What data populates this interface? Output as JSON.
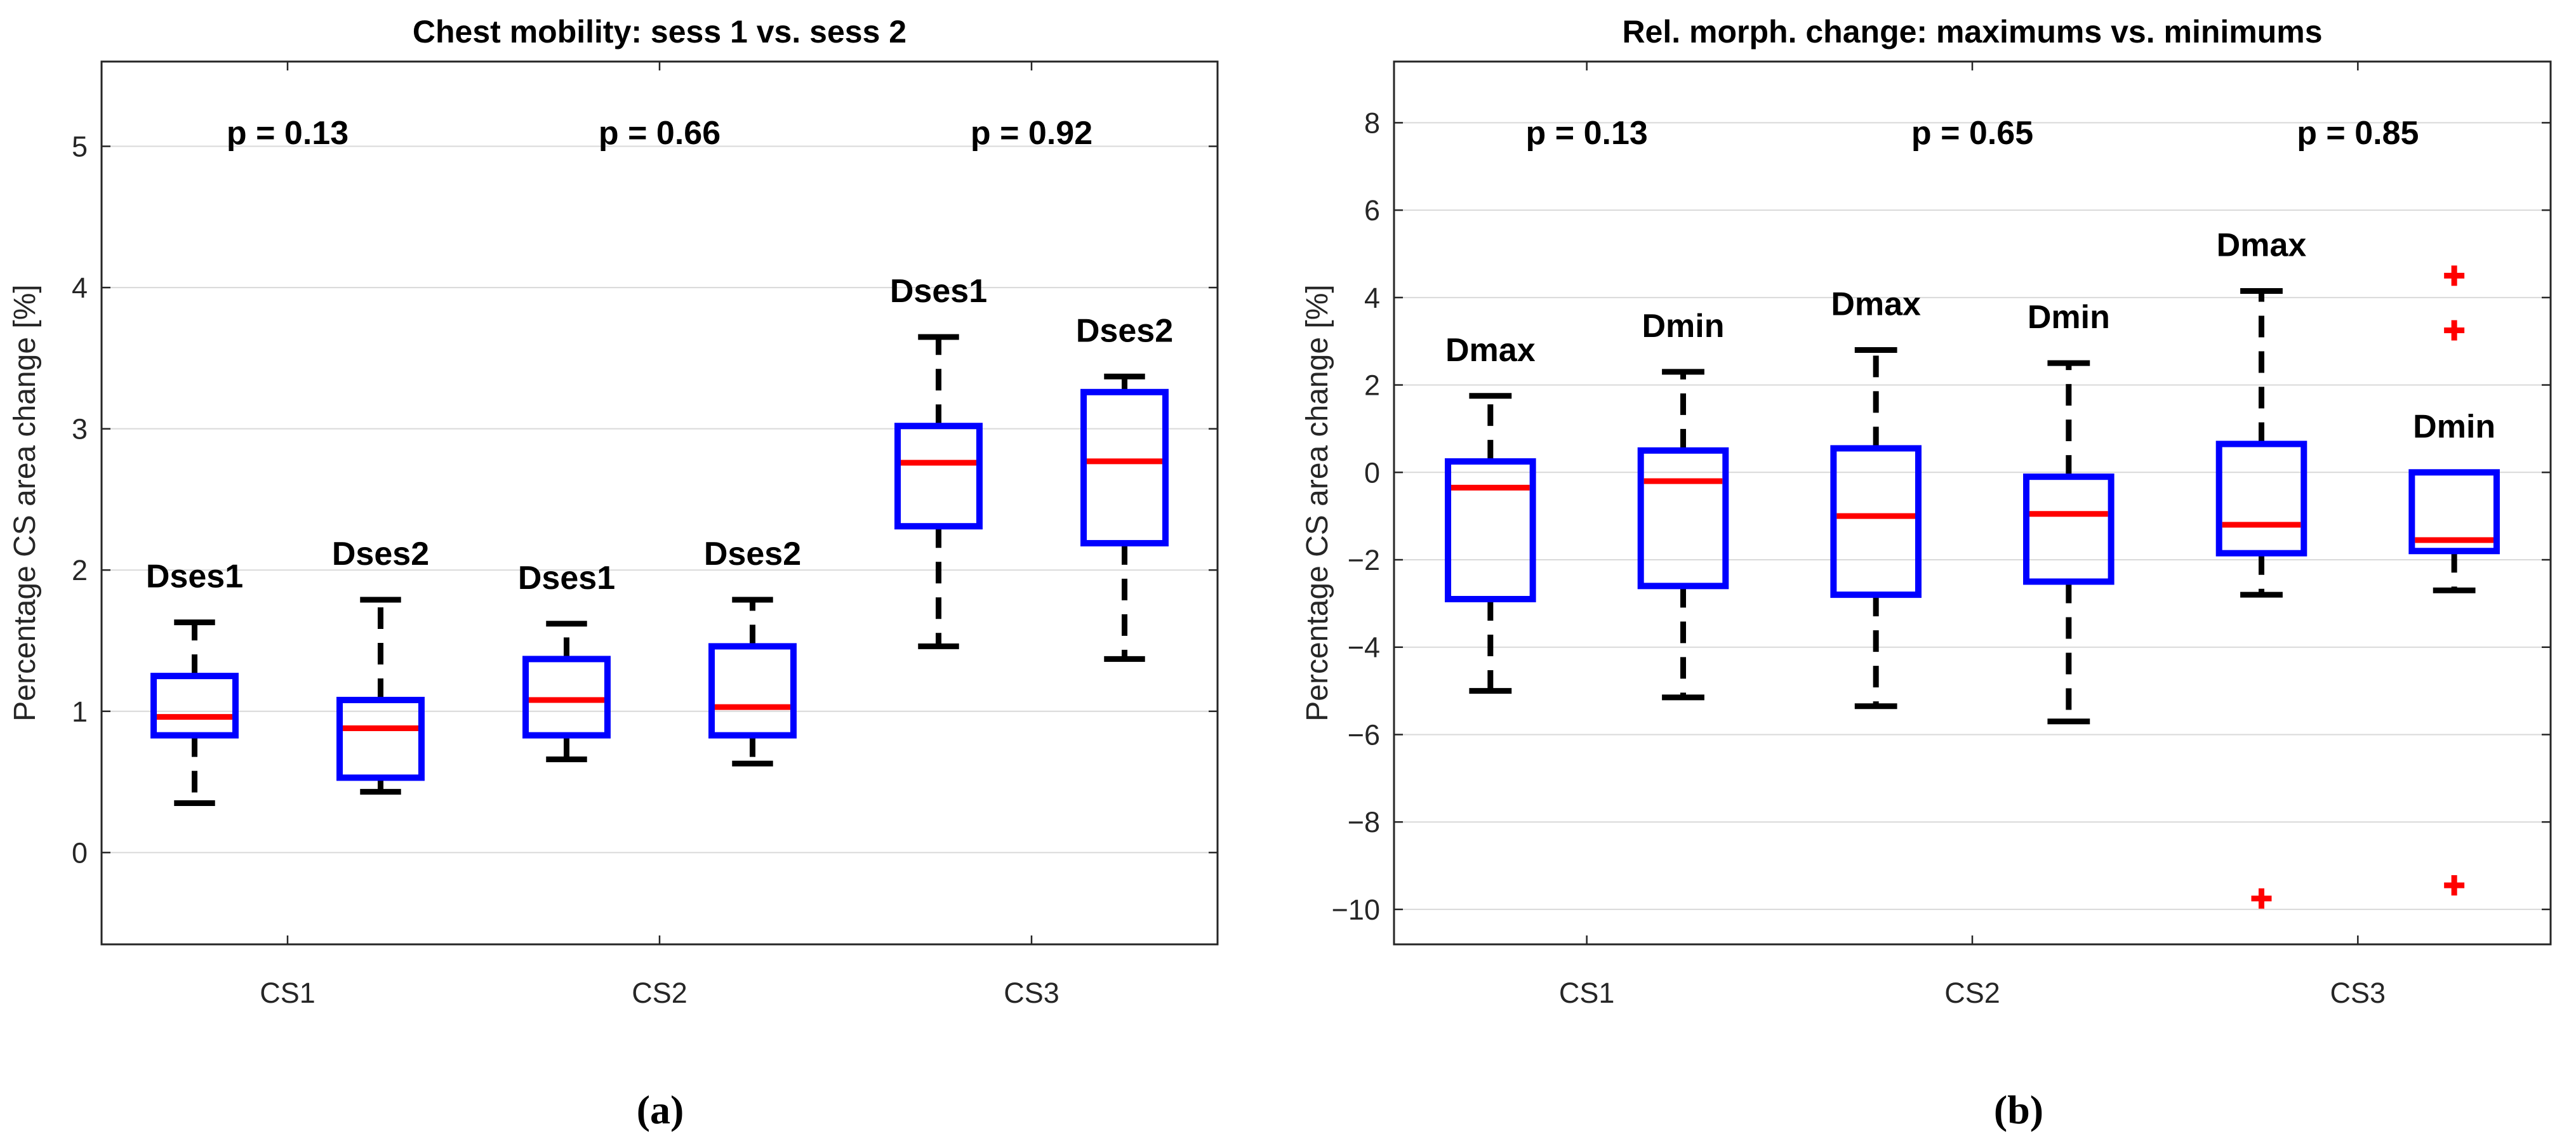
{
  "chart_data": [
    {
      "type": "box",
      "title": "Chest mobility: sess 1 vs. sess 2",
      "ylabel": "Percentage CS area change [%]",
      "xlabel": "",
      "ylim": [
        -0.65,
        5.6
      ],
      "yticks": [
        0,
        1,
        2,
        3,
        4,
        5
      ],
      "grid": true,
      "categories": [
        "CS1",
        "CS2",
        "CS3"
      ],
      "p_values": [
        "p = 0.13",
        "p = 0.66",
        "p = 0.92"
      ],
      "colors": {
        "box": "#0000ff",
        "median": "#ff0000",
        "whisker": "#000000",
        "outlier": "#ff0000",
        "grid": "#d9d9d9"
      },
      "boxes": [
        {
          "category": "CS1",
          "label": "Dses1",
          "whisker_low": 0.35,
          "q1": 0.83,
          "median": 0.96,
          "q3": 1.25,
          "whisker_high": 1.63,
          "outliers": []
        },
        {
          "category": "CS1",
          "label": "Dses2",
          "whisker_low": 0.43,
          "q1": 0.53,
          "median": 0.88,
          "q3": 1.08,
          "whisker_high": 1.79,
          "outliers": []
        },
        {
          "category": "CS2",
          "label": "Dses1",
          "whisker_low": 0.66,
          "q1": 0.83,
          "median": 1.08,
          "q3": 1.37,
          "whisker_high": 1.62,
          "outliers": []
        },
        {
          "category": "CS2",
          "label": "Dses2",
          "whisker_low": 0.63,
          "q1": 0.83,
          "median": 1.03,
          "q3": 1.46,
          "whisker_high": 1.79,
          "outliers": []
        },
        {
          "category": "CS3",
          "label": "Dses1",
          "whisker_low": 1.46,
          "q1": 2.31,
          "median": 2.76,
          "q3": 3.02,
          "whisker_high": 3.65,
          "outliers": []
        },
        {
          "category": "CS3",
          "label": "Dses2",
          "whisker_low": 1.37,
          "q1": 2.19,
          "median": 2.77,
          "q3": 3.26,
          "whisker_high": 3.37,
          "outliers": []
        }
      ]
    },
    {
      "type": "box",
      "title": "Rel. morph. change: maximums vs. minimums",
      "ylabel": "Percentage CS area change [%]",
      "xlabel": "",
      "ylim": [
        -10.8,
        9.4
      ],
      "yticks": [
        -10,
        -8,
        -6,
        -4,
        -2,
        0,
        2,
        4,
        6,
        8
      ],
      "grid": true,
      "categories": [
        "CS1",
        "CS2",
        "CS3"
      ],
      "p_values": [
        "p = 0.13",
        "p = 0.65",
        "p = 0.85"
      ],
      "colors": {
        "box": "#0000ff",
        "median": "#ff0000",
        "whisker": "#000000",
        "outlier": "#ff0000",
        "grid": "#d9d9d9"
      },
      "boxes": [
        {
          "category": "CS1",
          "label": "Dmax",
          "whisker_low": -5.0,
          "q1": -2.9,
          "median": -0.35,
          "q3": 0.25,
          "whisker_high": 1.75,
          "outliers": []
        },
        {
          "category": "CS1",
          "label": "Dmin",
          "whisker_low": -5.15,
          "q1": -2.6,
          "median": -0.2,
          "q3": 0.5,
          "whisker_high": 2.3,
          "outliers": []
        },
        {
          "category": "CS2",
          "label": "Dmax",
          "whisker_low": -5.35,
          "q1": -2.8,
          "median": -1.0,
          "q3": 0.55,
          "whisker_high": 2.8,
          "outliers": []
        },
        {
          "category": "CS2",
          "label": "Dmin",
          "whisker_low": -5.7,
          "q1": -2.5,
          "median": -0.95,
          "q3": -0.1,
          "whisker_high": 2.5,
          "outliers": []
        },
        {
          "category": "CS3",
          "label": "Dmax",
          "whisker_low": -2.8,
          "q1": -1.85,
          "median": -1.2,
          "q3": 0.65,
          "whisker_high": 4.15,
          "outliers": [
            -9.75
          ]
        },
        {
          "category": "CS3",
          "label": "Dmin",
          "whisker_low": -2.7,
          "q1": -1.8,
          "median": -1.55,
          "q3": 0.0,
          "whisker_high": 0.0,
          "outliers": [
            4.5,
            3.25,
            -9.45
          ]
        }
      ]
    }
  ],
  "panel_labels": [
    "(a)",
    "(b)"
  ]
}
